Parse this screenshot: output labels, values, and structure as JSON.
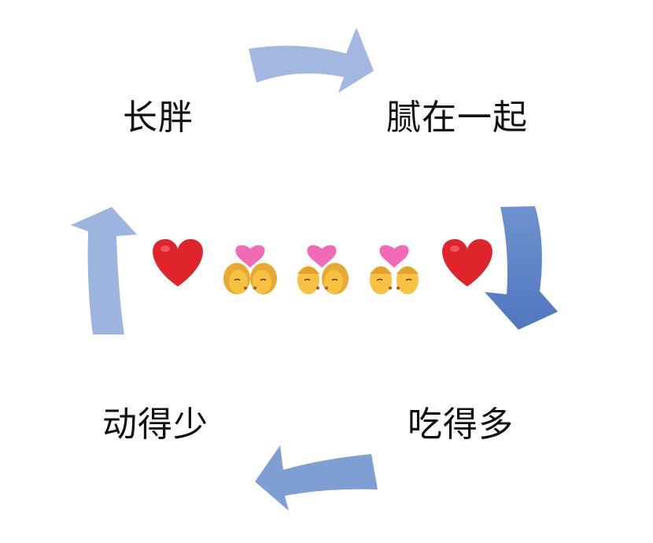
{
  "cycle": {
    "steps": [
      {
        "label": "腻在一起"
      },
      {
        "label": "吃得多"
      },
      {
        "label": "动得少"
      },
      {
        "label": "长胖"
      }
    ]
  },
  "center": {
    "emoji": [
      "heart",
      "couple-kiss-woman-woman",
      "couple-kiss",
      "couple-kiss-man-man",
      "heart"
    ]
  },
  "colors": {
    "arrow_light": "#9db5de",
    "arrow_dark": "#5b81c5",
    "heart_red": "#e0242c",
    "kiss_heart_pink": "#f06ab6",
    "face_yellow": "#f7c242"
  }
}
